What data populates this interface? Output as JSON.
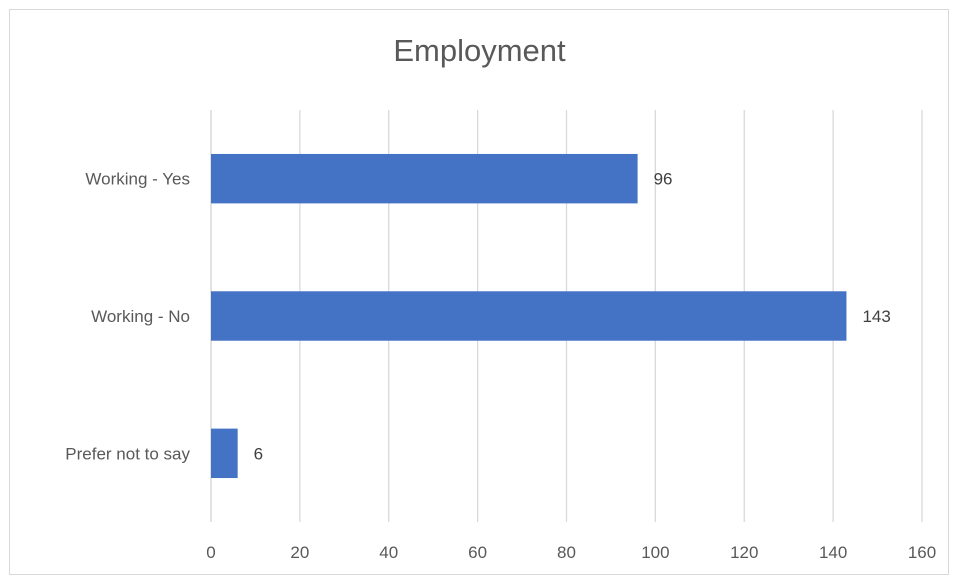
{
  "chart_data": {
    "type": "bar",
    "orientation": "horizontal",
    "title": "Employment",
    "categories": [
      "Working - Yes",
      "Working - No",
      "Prefer not to say"
    ],
    "values": [
      96,
      143,
      6
    ],
    "data_labels": [
      "96",
      "143",
      "6"
    ],
    "xlim": [
      0,
      160
    ],
    "x_ticks": [
      0,
      20,
      40,
      60,
      80,
      100,
      120,
      140,
      160
    ],
    "grid": true,
    "legend": "none",
    "bar_color": "#4472c4",
    "grid_color": "#d9d9d9"
  }
}
